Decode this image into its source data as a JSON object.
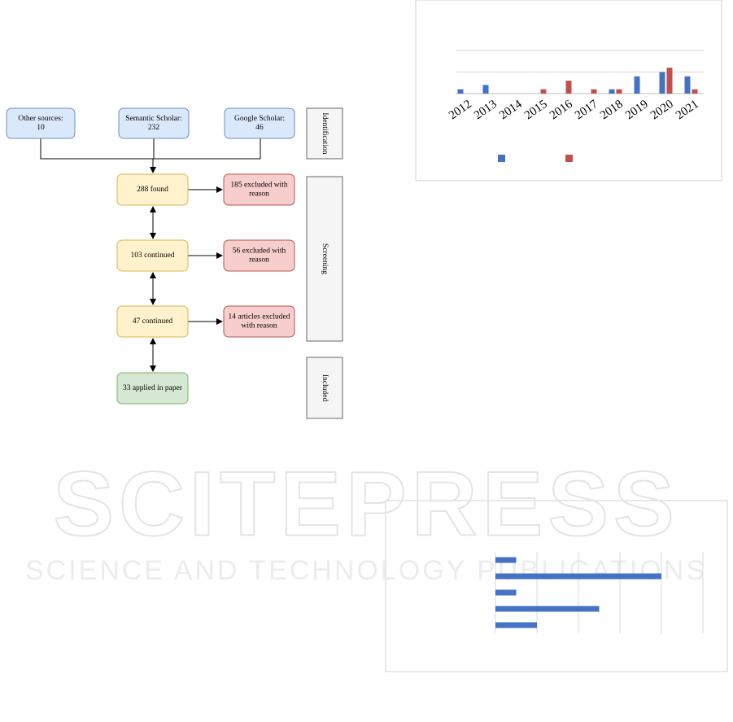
{
  "diagram": {
    "nodes": [
      {
        "lines": [
          "Other sources:",
          "10"
        ]
      },
      {
        "lines": [
          "Semantic Scholar:",
          "232"
        ]
      },
      {
        "lines": [
          "Google Scholar:",
          "46"
        ]
      },
      {
        "lines": [
          "288 found"
        ]
      },
      {
        "lines": [
          "185 excluded with",
          "reason"
        ]
      },
      {
        "lines": [
          "103 continued"
        ]
      },
      {
        "lines": [
          "56 excluded with",
          "reason"
        ]
      },
      {
        "lines": [
          "47 continued"
        ]
      },
      {
        "lines": [
          "14 articles excluded",
          "with reason"
        ]
      },
      {
        "lines": [
          "33 applied in paper"
        ]
      }
    ],
    "stages": [
      "Identification",
      "Screening",
      "Included"
    ]
  },
  "chart_data": [
    {
      "type": "bar",
      "categories": [
        "2012",
        "2013",
        "2014",
        "2015",
        "2016",
        "2017",
        "2018",
        "2019",
        "2020",
        "2021"
      ],
      "series": [
        {
          "color": "#4472c4",
          "values": [
            1,
            2,
            0,
            0,
            0,
            0,
            1,
            4,
            5,
            4
          ]
        },
        {
          "color": "#c0504d",
          "values": [
            0,
            0,
            0,
            1,
            3,
            1,
            1,
            0,
            6,
            1
          ]
        }
      ],
      "ylim": [
        0,
        10
      ],
      "yticks": [
        0,
        5,
        10
      ],
      "grid": true,
      "legend": "bottom"
    },
    {
      "type": "bar",
      "orientation": "horizontal",
      "categories": [
        null,
        null,
        null,
        null,
        null
      ],
      "values": [
        0.5,
        4,
        0.5,
        2.5,
        1
      ],
      "color": "#4472c4",
      "xlim": [
        0,
        5
      ],
      "xticks": [
        0,
        1,
        2,
        3,
        4,
        5
      ],
      "grid": true
    }
  ],
  "watermark": {
    "title": "SCITEPRESS",
    "subtitle": "SCIENCE AND TECHNOLOGY PUBLICATIONS"
  }
}
